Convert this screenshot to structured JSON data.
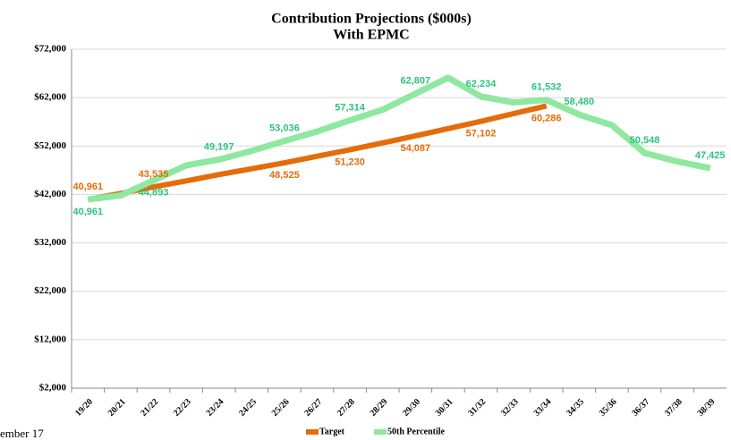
{
  "chart_data": {
    "type": "line",
    "title": "Contribution Projections ($000s)",
    "subtitle": "With EPMC",
    "footer": "ember 17",
    "categories": [
      "19/20",
      "20/21",
      "21/22",
      "22/23",
      "23/24",
      "24/25",
      "25/26",
      "26/27",
      "27/28",
      "28/29",
      "29/30",
      "30/31",
      "31/32",
      "32/33",
      "33/34",
      "34/35",
      "35/36",
      "36/37",
      "37/38",
      "38/39"
    ],
    "series": [
      {
        "name": "Target",
        "color": "#e46c0a",
        "values": [
          40961,
          42200,
          43535,
          44800,
          46100,
          47300,
          48525,
          49900,
          51230,
          52650,
          54087,
          55600,
          57102,
          58700,
          60286,
          null,
          null,
          null,
          null,
          null
        ],
        "value_labels": [
          "40,961",
          null,
          "43,535",
          null,
          null,
          null,
          "48,525",
          null,
          "51,230",
          null,
          "54,087",
          null,
          "57,102",
          null,
          "60,286",
          null,
          null,
          null,
          null,
          null
        ]
      },
      {
        "name": "50th Percentile",
        "color": "#8fe8a0",
        "values": [
          40961,
          41800,
          44893,
          48000,
          49197,
          51000,
          53036,
          55000,
          57314,
          59500,
          62807,
          66100,
          62234,
          61000,
          61532,
          58480,
          56300,
          50548,
          48800,
          47425
        ],
        "value_labels": [
          "40,961",
          null,
          "44,893",
          null,
          "49,197",
          null,
          "53,036",
          null,
          "57,314",
          null,
          "62,807",
          null,
          "62,234",
          null,
          "61,532",
          "58,480",
          null,
          "50,548",
          null,
          "47,425"
        ]
      }
    ],
    "ylim": [
      2000,
      72000
    ],
    "yticks": [
      {
        "value": 2000,
        "label": "$2,000"
      },
      {
        "value": 12000,
        "label": "$12,000"
      },
      {
        "value": 22000,
        "label": "$22,000"
      },
      {
        "value": 32000,
        "label": "$32,000"
      },
      {
        "value": 42000,
        "label": "$42,000"
      },
      {
        "value": 52000,
        "label": "$52,000"
      },
      {
        "value": 62000,
        "label": "$62,000"
      },
      {
        "value": 72000,
        "label": "$72,000"
      }
    ],
    "grid": true
  }
}
